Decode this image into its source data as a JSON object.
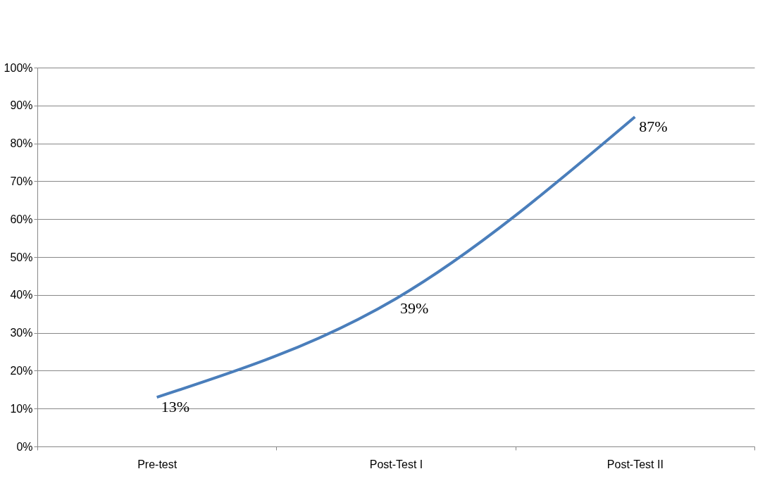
{
  "chart_data": {
    "type": "line",
    "categories": [
      "Pre-test",
      "Post-Test I",
      "Post-Test II"
    ],
    "series": [
      {
        "color": "#4a7ebb",
        "values": [
          13,
          39,
          87
        ],
        "value_labels": [
          "13%",
          "39%",
          "87%"
        ]
      }
    ],
    "ylim": [
      0,
      100
    ],
    "yticks": [
      {
        "value": 0,
        "label": "0%"
      },
      {
        "value": 10,
        "label": "10%"
      },
      {
        "value": 20,
        "label": "20%"
      },
      {
        "value": 30,
        "label": "30%"
      },
      {
        "value": 40,
        "label": "40%"
      },
      {
        "value": 50,
        "label": "50%"
      },
      {
        "value": 60,
        "label": "60%"
      },
      {
        "value": 70,
        "label": "70%"
      },
      {
        "value": 80,
        "label": "80%"
      },
      {
        "value": 90,
        "label": "90%"
      },
      {
        "value": 100,
        "label": "100%"
      }
    ],
    "grid": "y",
    "marker": "none",
    "line_style": "solid"
  }
}
